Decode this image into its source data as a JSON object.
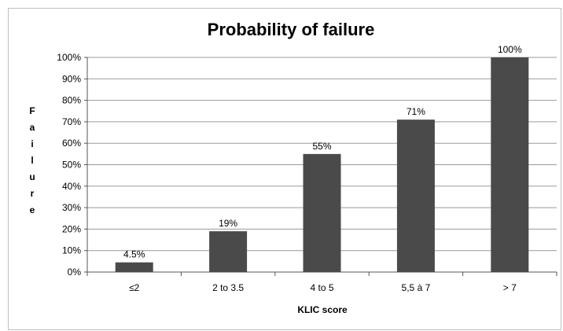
{
  "chart_data": {
    "type": "bar",
    "title": "Probability of failure",
    "xlabel": "KLIC score",
    "ylabel": "Failure",
    "categories": [
      "≤2",
      "2 to 3.5",
      "4 to 5",
      "5,5 à 7",
      "> 7"
    ],
    "values": [
      4.5,
      19,
      55,
      71,
      100
    ],
    "value_labels": [
      "4.5%",
      "19%",
      "55%",
      "71%",
      "100%"
    ],
    "ylim": [
      0,
      100
    ],
    "ytick_values": [
      0,
      10,
      20,
      30,
      40,
      50,
      60,
      70,
      80,
      90,
      100
    ],
    "ytick_labels": [
      "0%",
      "10%",
      "20%",
      "30%",
      "40%",
      "50%",
      "60%",
      "70%",
      "80%",
      "90%",
      "100%"
    ],
    "grid": true,
    "legend": "none",
    "bar_color": "#4a4a4a",
    "grid_color": "#9a9a9a",
    "text_color": "#000000"
  }
}
